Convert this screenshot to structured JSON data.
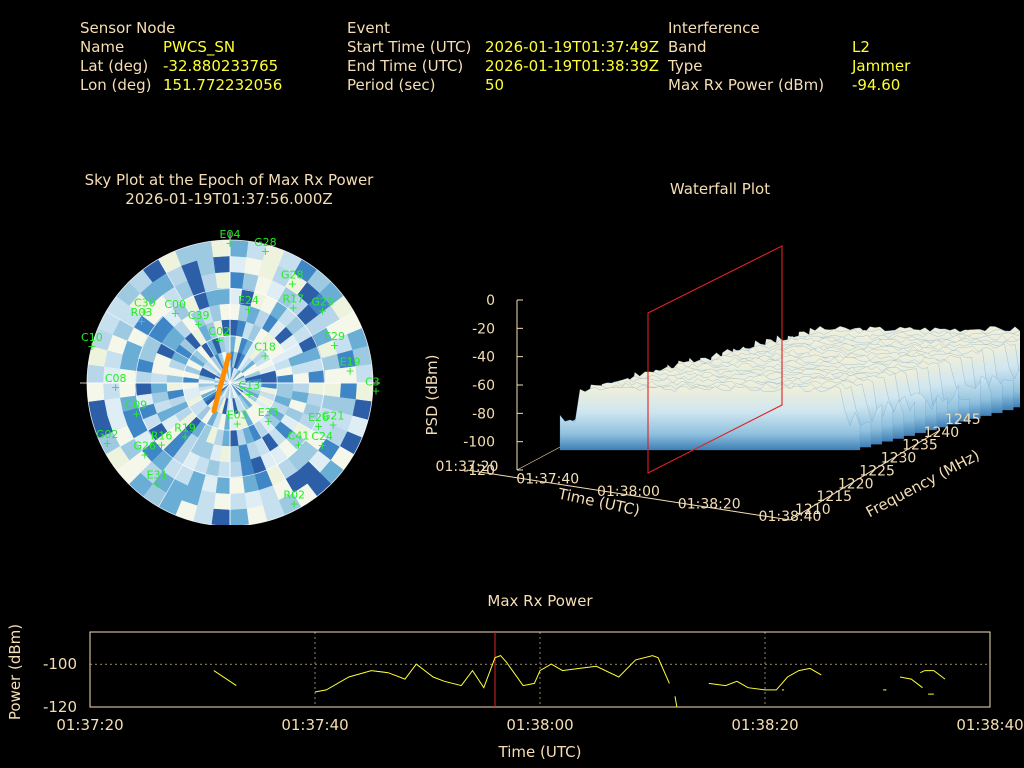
{
  "sensor": {
    "heading": "Sensor Node",
    "name_label": "Name",
    "name_value": "PWCS_SN",
    "lat_label": "Lat (deg)",
    "lat_value": "-32.880233765",
    "lon_label": "Lon (deg)",
    "lon_value": "151.772232056"
  },
  "event": {
    "heading": "Event",
    "start_label": "Start Time (UTC)",
    "start_value": "2026-01-19T01:37:49Z",
    "end_label": "End Time (UTC)",
    "end_value": "2026-01-19T01:38:39Z",
    "period_label": "Period (sec)",
    "period_value": "50"
  },
  "interference": {
    "heading": "Interference",
    "band_label": "Band",
    "band_value": "L2",
    "type_label": "Type",
    "type_value": "Jammer",
    "maxrx_label": "Max Rx Power (dBm)",
    "maxrx_value": "-94.60"
  },
  "colors": {
    "label": "#f5deb3",
    "value": "#ffff33",
    "satellite": "#22ee22",
    "track": "#ff8c00",
    "marker": "#dd2222",
    "power_line": "#ffff33"
  },
  "chart_data": [
    {
      "type": "scatter",
      "title": "Sky Plot at the Epoch of Max Rx Power",
      "subtitle": "2026-01-19T01:37:56.000Z",
      "projection": "polar",
      "satellites": [
        {
          "id": "E04",
          "az": 0,
          "el": 88
        },
        {
          "id": "G28",
          "az": 15,
          "el": 86
        },
        {
          "id": "G28",
          "az": 32,
          "el": 74
        },
        {
          "id": "G23",
          "az": 52,
          "el": 74
        },
        {
          "id": "R03",
          "az": 305,
          "el": 68
        },
        {
          "id": "R17",
          "az": 40,
          "el": 62
        },
        {
          "id": "E24",
          "az": 14,
          "el": 48
        },
        {
          "id": "E29",
          "az": 70,
          "el": 70
        },
        {
          "id": "E19",
          "az": 84,
          "el": 76
        },
        {
          "id": "C35",
          "az": 93,
          "el": 92
        },
        {
          "id": "G21",
          "az": 112,
          "el": 70
        },
        {
          "id": "E26",
          "az": 116,
          "el": 62
        },
        {
          "id": "C24",
          "az": 124,
          "el": 70
        },
        {
          "id": "C41",
          "az": 132,
          "el": 58
        },
        {
          "id": "E33",
          "az": 135,
          "el": 34
        },
        {
          "id": "E03",
          "az": 170,
          "el": 26
        },
        {
          "id": "R02",
          "az": 152,
          "el": 86
        },
        {
          "id": "E31",
          "az": 216,
          "el": 78
        },
        {
          "id": "G26",
          "az": 230,
          "el": 70
        },
        {
          "id": "G02",
          "az": 244,
          "el": 86
        },
        {
          "id": "R16",
          "az": 228,
          "el": 58
        },
        {
          "id": "R19",
          "az": 220,
          "el": 44
        },
        {
          "id": "C09",
          "az": 252,
          "el": 62
        },
        {
          "id": "C08",
          "az": 268,
          "el": 72
        },
        {
          "id": "C10",
          "az": 285,
          "el": 90
        },
        {
          "id": "C30",
          "az": 310,
          "el": 70
        },
        {
          "id": "C00",
          "az": 322,
          "el": 56
        },
        {
          "id": "C39",
          "az": 332,
          "el": 42
        },
        {
          "id": "C02",
          "az": 346,
          "el": 28
        },
        {
          "id": "C18",
          "az": 52,
          "el": 28
        },
        {
          "id": "C13",
          "az": 120,
          "el": 14
        }
      ]
    },
    {
      "type": "surface",
      "title": "Waterfall Plot",
      "xlabel": "Time (UTC)",
      "ylabel": "Frequency (MHz)",
      "zlabel": "PSD (dBm)",
      "x_ticks": [
        "01:37:20",
        "01:37:40",
        "01:38:00",
        "01:38:20",
        "01:38:40"
      ],
      "y_ticks": [
        "1210",
        "1215",
        "1220",
        "1225",
        "1230",
        "1235",
        "1240",
        "1245"
      ],
      "z_ticks": [
        "0",
        "-20",
        "-40",
        "-60",
        "-80",
        "-100",
        "-120"
      ],
      "xlim": [
        "01:37:20",
        "01:38:40"
      ],
      "ylim": [
        1210,
        1245
      ],
      "zlim": [
        -120,
        0
      ],
      "marker_time": "01:37:56"
    },
    {
      "type": "line",
      "title": "Max Rx Power",
      "xlabel": "Time (UTC)",
      "ylabel": "Power (dBm)",
      "x_ticks": [
        "01:37:20",
        "01:37:40",
        "01:38:00",
        "01:38:20",
        "01:38:40"
      ],
      "y_ticks": [
        "-100",
        "-120"
      ],
      "xlim_sec": [
        0,
        80
      ],
      "ylim": [
        -120,
        -85
      ],
      "marker_sec": 36,
      "series": [
        {
          "segments": [
            [
              [
                11,
                -103
              ],
              [
                13,
                -110
              ]
            ],
            [
              [
                20,
                -113
              ],
              [
                21,
                -112
              ],
              [
                23,
                -106
              ],
              [
                25,
                -103
              ],
              [
                26.5,
                -104
              ],
              [
                28,
                -107
              ],
              [
                29,
                -100
              ],
              [
                30.5,
                -106
              ],
              [
                31.5,
                -108
              ],
              [
                33,
                -110
              ],
              [
                34,
                -103
              ],
              [
                35,
                -111
              ],
              [
                36,
                -97
              ],
              [
                36.5,
                -96
              ],
              [
                37,
                -99
              ],
              [
                38.5,
                -110
              ],
              [
                39.5,
                -109
              ],
              [
                40,
                -103
              ],
              [
                41,
                -100
              ],
              [
                42,
                -103
              ],
              [
                43.5,
                -102
              ],
              [
                45,
                -101
              ],
              [
                47,
                -106
              ],
              [
                48.5,
                -98
              ],
              [
                50,
                -96
              ],
              [
                50.5,
                -97
              ],
              [
                51.5,
                -109
              ]
            ],
            [
              [
                52,
                -115
              ],
              [
                52.5,
                -130
              ]
            ],
            [
              [
                55,
                -109
              ],
              [
                56.5,
                -110
              ],
              [
                57.5,
                -108
              ],
              [
                58.5,
                -111
              ],
              [
                60,
                -112
              ],
              [
                61,
                -112
              ],
              [
                62,
                -106
              ],
              [
                63,
                -103
              ],
              [
                64,
                -102
              ],
              [
                65,
                -105
              ]
            ],
            [
              [
                72,
                -106
              ],
              [
                73,
                -107
              ],
              [
                74,
                -111
              ]
            ],
            [
              [
                70.5,
                -112
              ],
              [
                70.8,
                -112
              ]
            ],
            [
              [
                61.5,
                -112
              ],
              [
                61.7,
                -112
              ]
            ],
            [
              [
                74.5,
                -114
              ],
              [
                75,
                -114
              ]
            ],
            [
              [
                73.8,
                -104
              ],
              [
                74.2,
                -103
              ],
              [
                75,
                -103
              ],
              [
                75.5,
                -105
              ],
              [
                76,
                -107
              ]
            ]
          ]
        }
      ]
    }
  ]
}
